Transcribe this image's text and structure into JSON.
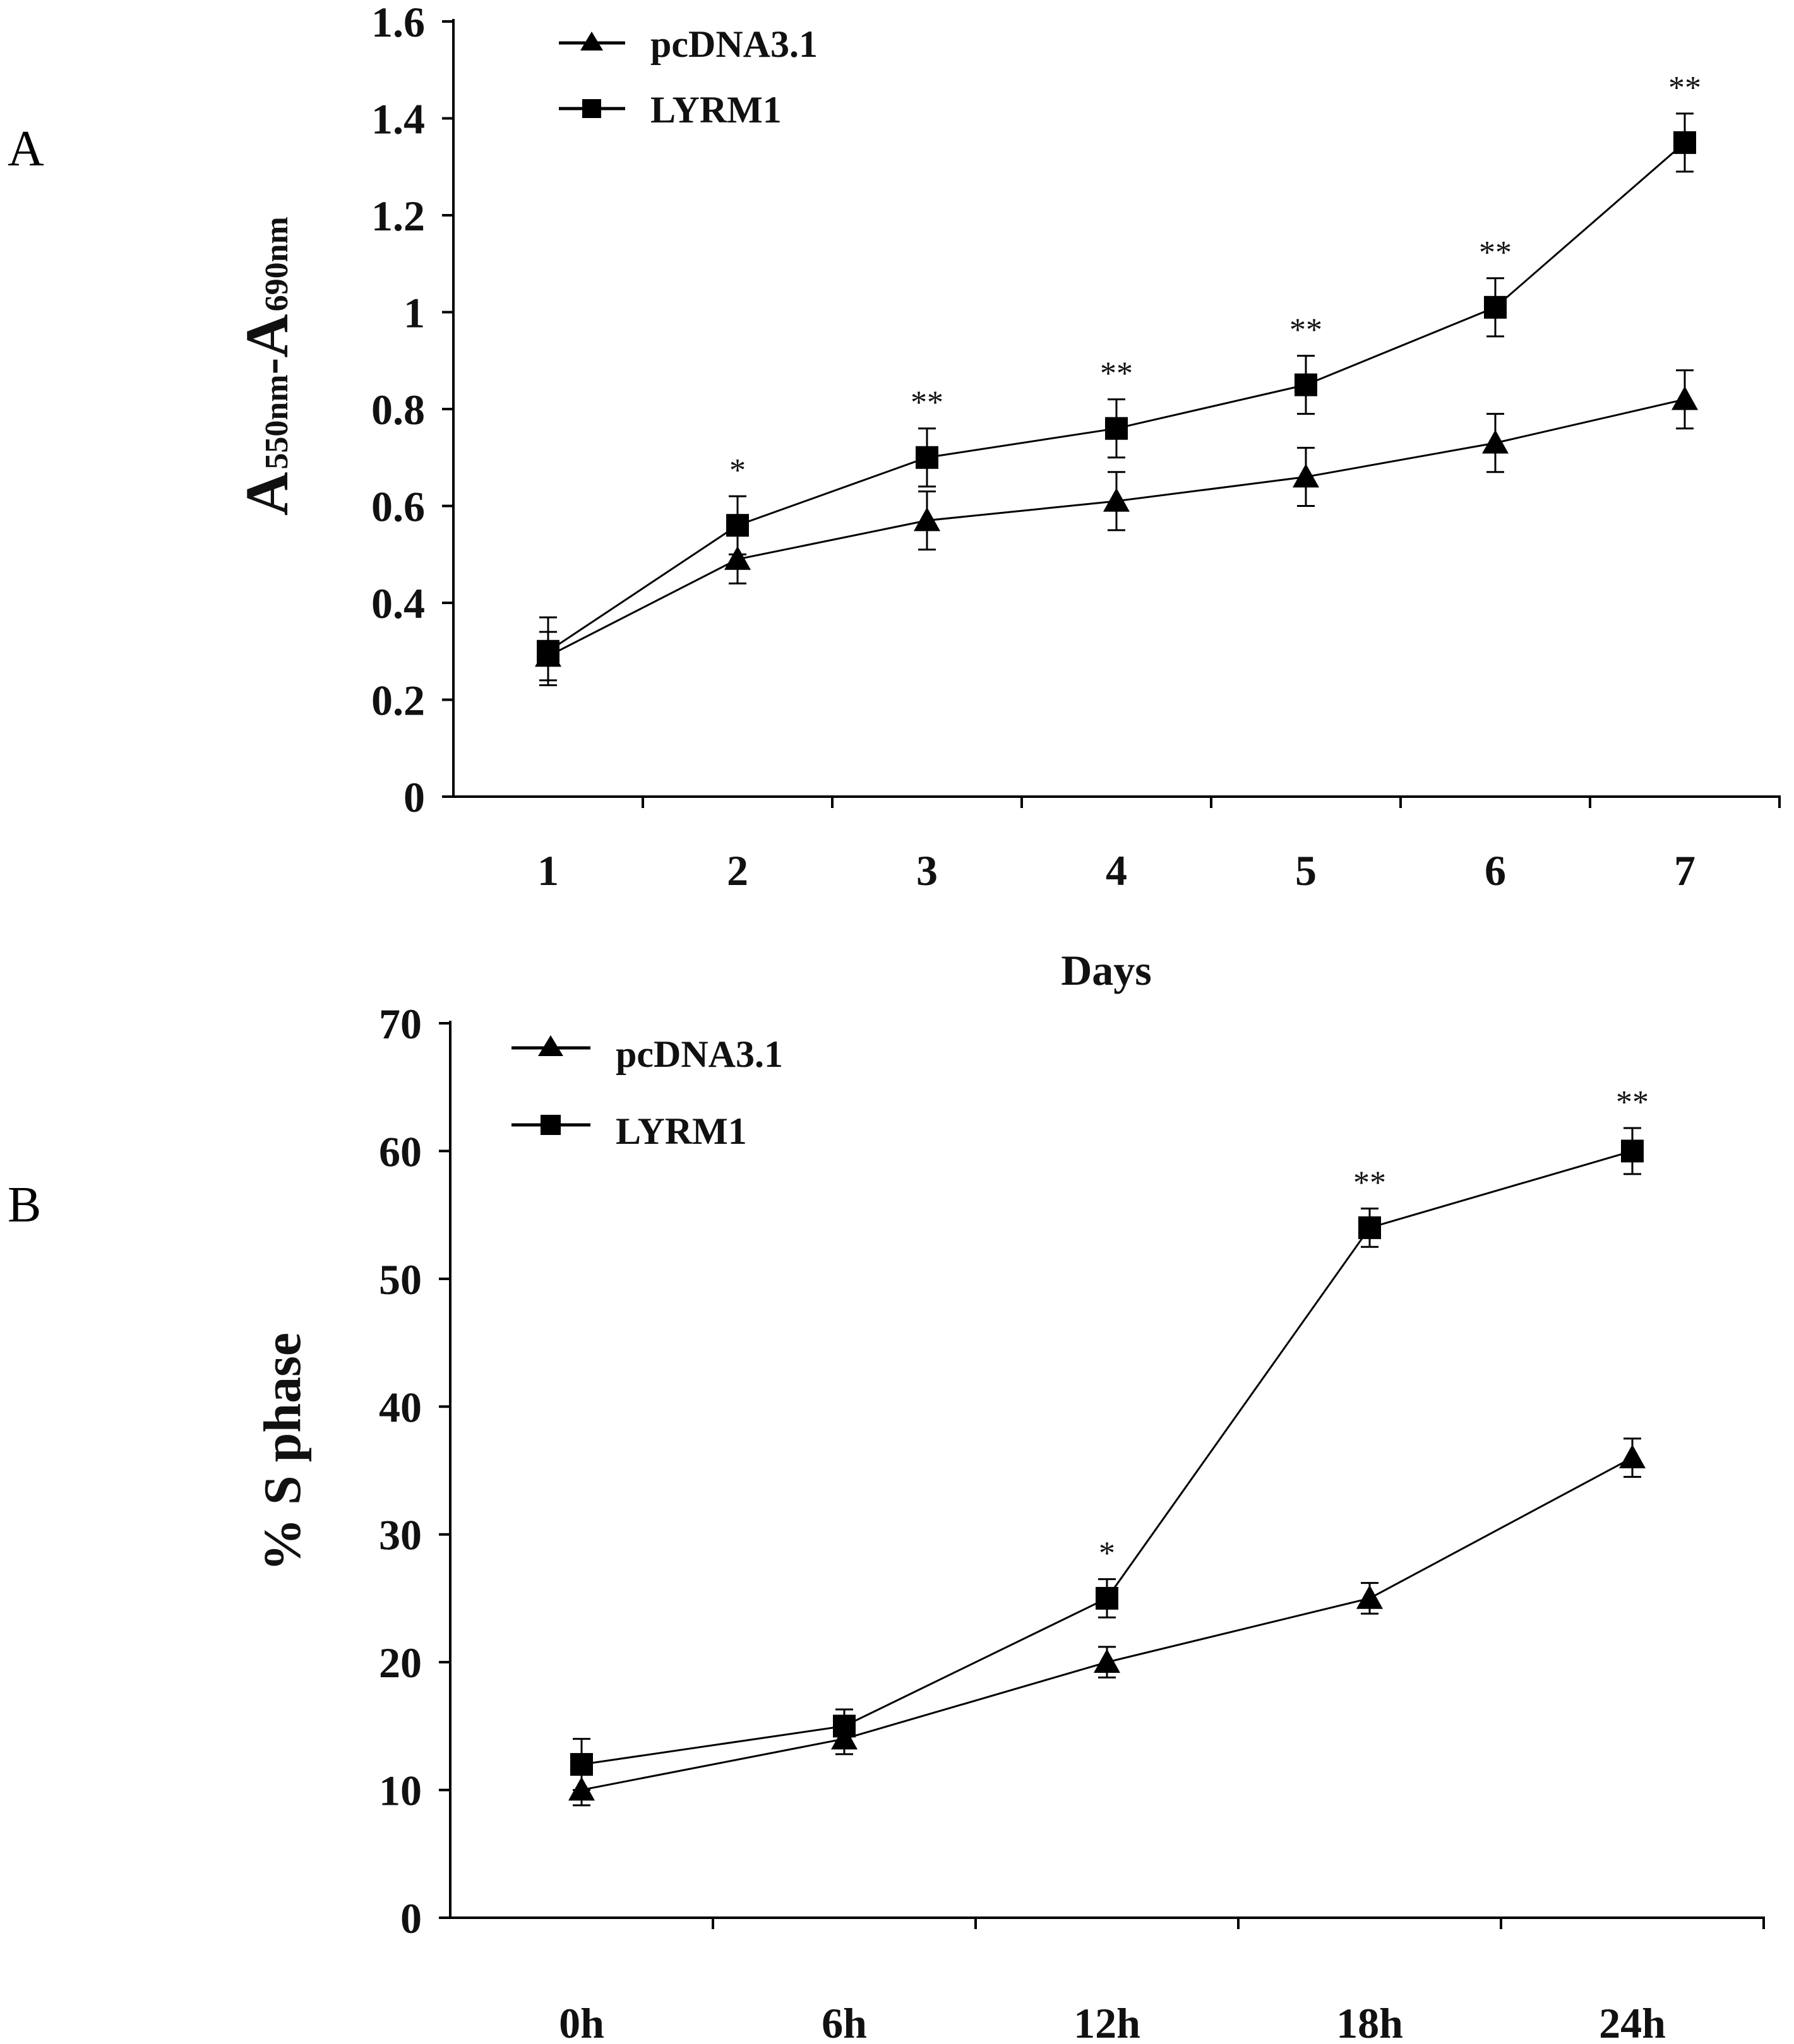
{
  "figure": {
    "panels": [
      "A",
      "B"
    ]
  },
  "chart_data": [
    {
      "panel": "A",
      "type": "line",
      "title": "",
      "xlabel": "Days",
      "ylabel": {
        "main1": "A",
        "sub1": "550nm",
        "dash": "-",
        "main2": "A",
        "sub2": "690nm"
      },
      "categories": [
        "1",
        "2",
        "3",
        "4",
        "5",
        "6",
        "7"
      ],
      "ylim": [
        0,
        1.6
      ],
      "yticks": [
        "0",
        "0.2",
        "0.4",
        "0.6",
        "0.8",
        "1",
        "1.2",
        "1.4",
        "1.6"
      ],
      "legend_position": "top-left",
      "grid": false,
      "series": [
        {
          "name": "pcDNA3.1",
          "marker": "triangle",
          "values": [
            0.29,
            0.49,
            0.57,
            0.61,
            0.66,
            0.73,
            0.82
          ],
          "errors": [
            0.05,
            0.05,
            0.06,
            0.06,
            0.06,
            0.06,
            0.06
          ]
        },
        {
          "name": "LYRM1",
          "marker": "square",
          "values": [
            0.3,
            0.56,
            0.7,
            0.76,
            0.85,
            1.01,
            1.35
          ],
          "errors": [
            0.07,
            0.06,
            0.06,
            0.06,
            0.06,
            0.06,
            0.06
          ]
        }
      ],
      "annotations": [
        "",
        "*",
        "**",
        "**",
        "**",
        "**",
        "**"
      ]
    },
    {
      "panel": "B",
      "type": "line",
      "title": "",
      "xlabel": "",
      "ylabel": "% S phase",
      "categories": [
        "0h",
        "6h",
        "12h",
        "18h",
        "24h"
      ],
      "ylim": [
        0,
        70
      ],
      "yticks": [
        "0",
        "10",
        "20",
        "30",
        "40",
        "50",
        "60",
        "70"
      ],
      "legend_position": "top-left",
      "grid": false,
      "series": [
        {
          "name": "pcDNA3.1",
          "marker": "triangle",
          "values": [
            10,
            14,
            20,
            25,
            36
          ],
          "errors": [
            1.2,
            1.2,
            1.2,
            1.2,
            1.5
          ]
        },
        {
          "name": "LYRM1",
          "marker": "square",
          "values": [
            12,
            15,
            25,
            54,
            60
          ],
          "errors": [
            2.0,
            1.3,
            1.5,
            1.5,
            1.8
          ]
        }
      ],
      "annotations": [
        "",
        "",
        "*",
        "**",
        "**"
      ]
    }
  ]
}
